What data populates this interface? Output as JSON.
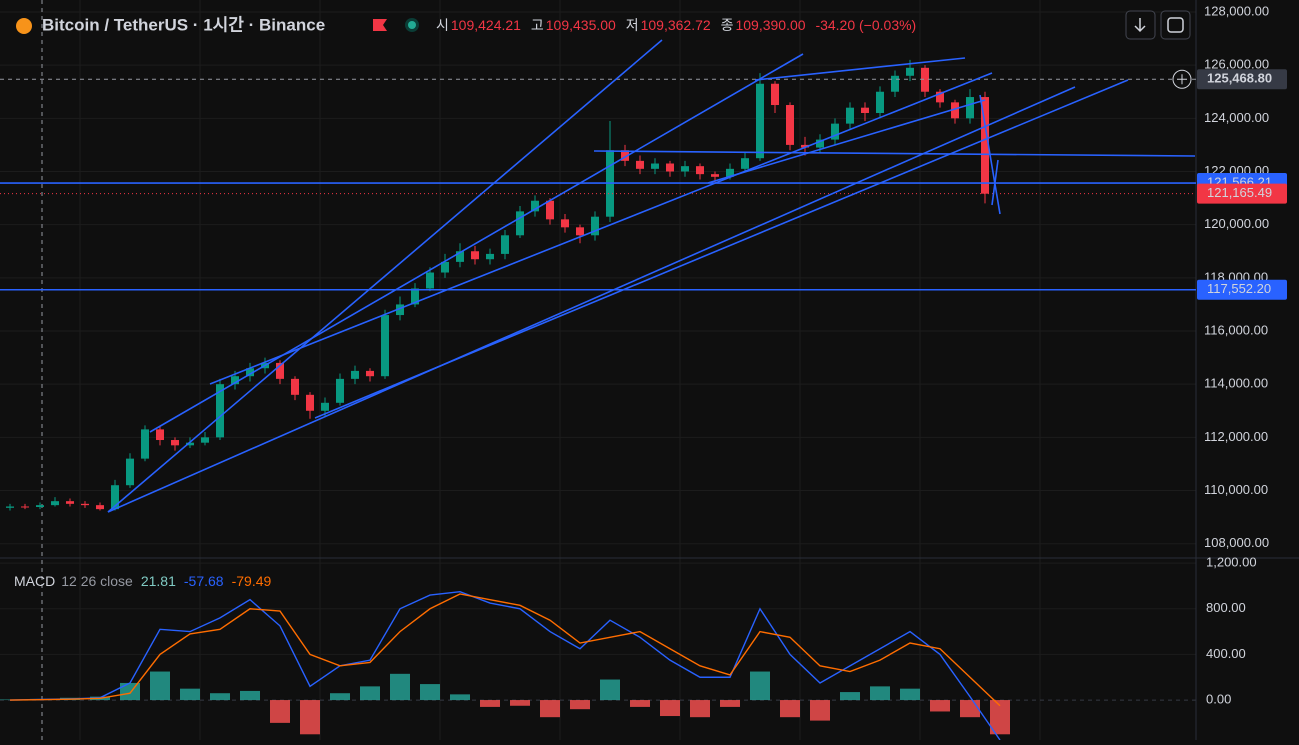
{
  "header": {
    "symbol": "Bitcoin / TetherUS · 1시간 · Binance",
    "ohlc": [
      {
        "key": "시",
        "value": "109,424.21"
      },
      {
        "key": "고",
        "value": "109,435.00"
      },
      {
        "key": "저",
        "value": "109,362.72"
      },
      {
        "key": "종",
        "value": "109,390.00"
      }
    ],
    "change": "-34.20 (−0.03%)"
  },
  "chart_data": [
    {
      "type": "candlestick",
      "up_color": "#089981",
      "down_color": "#f23645",
      "open": [
        109350,
        109400,
        109380,
        109450,
        109600,
        109500,
        109450,
        109300,
        110200,
        111200,
        112300,
        111900,
        111700,
        111800,
        112000,
        114000,
        114300,
        114600,
        114800,
        114200,
        113600,
        113000,
        113300,
        114200,
        114500,
        114300,
        116600,
        117000,
        117600,
        118200,
        118600,
        119000,
        118700,
        118900,
        119600,
        120500,
        120900,
        120200,
        119900,
        119600,
        120300,
        122800,
        122400,
        122100,
        122300,
        122000,
        122200,
        121900,
        121800,
        122100,
        122500,
        125300,
        124500,
        123000,
        122900,
        123200,
        123800,
        124400,
        124200,
        125000,
        125600,
        125900,
        125000,
        124600,
        124000,
        124800
      ],
      "high": [
        109500,
        109500,
        109550,
        109750,
        109700,
        109600,
        109550,
        110400,
        111400,
        112450,
        112400,
        112000,
        112000,
        112200,
        114200,
        114500,
        114800,
        115000,
        114900,
        114300,
        113700,
        113500,
        114400,
        114700,
        114600,
        116800,
        117300,
        117800,
        118400,
        118900,
        119300,
        119200,
        119100,
        119800,
        120700,
        121100,
        121000,
        120400,
        120000,
        120500,
        123900,
        123000,
        122600,
        122500,
        122400,
        122400,
        122300,
        122000,
        122300,
        122700,
        125700,
        125400,
        124600,
        123300,
        123400,
        124000,
        124600,
        124600,
        125200,
        125800,
        126200,
        126000,
        125100,
        124700,
        125100,
        125000
      ],
      "low": [
        109250,
        109300,
        109300,
        109400,
        109400,
        109350,
        109250,
        109250,
        110100,
        111100,
        111700,
        111500,
        111600,
        111700,
        111900,
        113800,
        114100,
        114400,
        114000,
        113400,
        112700,
        112800,
        113200,
        114000,
        114100,
        114200,
        116400,
        116900,
        117500,
        118000,
        118400,
        118500,
        118500,
        118700,
        119500,
        120300,
        120000,
        119700,
        119300,
        119400,
        120100,
        122200,
        121900,
        121900,
        121800,
        121800,
        121700,
        121600,
        121700,
        122000,
        122400,
        124200,
        122800,
        122600,
        122700,
        123000,
        123600,
        123900,
        124000,
        124800,
        125400,
        124800,
        124400,
        123800,
        123800,
        120800
      ],
      "close": [
        109400,
        109380,
        109450,
        109600,
        109500,
        109450,
        109300,
        110200,
        111200,
        112300,
        111900,
        111700,
        111800,
        112000,
        114000,
        114300,
        114600,
        114800,
        114200,
        113600,
        113000,
        113300,
        114200,
        114500,
        114300,
        116600,
        117000,
        117600,
        118200,
        118600,
        119000,
        118700,
        118900,
        119600,
        120500,
        120900,
        120200,
        119900,
        119600,
        120300,
        122800,
        122400,
        122100,
        122300,
        122000,
        122200,
        121900,
        121800,
        122100,
        122500,
        125300,
        124500,
        123000,
        122900,
        123200,
        123800,
        124400,
        124200,
        125000,
        125600,
        125900,
        125000,
        124600,
        124000,
        124800,
        121165
      ],
      "ylim": [
        107500,
        128450
      ],
      "yticks": [
        {
          "value": 108000,
          "label": "108,000.00"
        },
        {
          "value": 110000,
          "label": "110,000.00"
        },
        {
          "value": 112000,
          "label": "112,000.00"
        },
        {
          "value": 114000,
          "label": "114,000.00"
        },
        {
          "value": 116000,
          "label": "116,000.00"
        },
        {
          "value": 118000,
          "label": "118,000.00"
        },
        {
          "value": 120000,
          "label": "120,000.00"
        },
        {
          "value": 122000,
          "label": "122,000.00"
        },
        {
          "value": 124000,
          "label": "124,000.00"
        },
        {
          "value": 126000,
          "label": "126,000.00"
        },
        {
          "value": 128000,
          "label": "128,000.00"
        }
      ],
      "price_lines": [
        {
          "value": 121566.21,
          "label": "121,566.21",
          "color": "#2962ff"
        },
        {
          "value": 117552.2,
          "label": "117,552.20",
          "color": "#2962ff"
        },
        {
          "value": 121165.49,
          "label": "121,165.49",
          "color": "#f23645"
        },
        {
          "value": 125468.8,
          "label": "125,468.80",
          "color": "#363a45"
        }
      ]
    },
    {
      "type": "macd",
      "title": "MACD",
      "params": "12 26 close",
      "legend_values": [
        {
          "text": "21.81",
          "color": "#80cbc4"
        },
        {
          "text": "-57.68",
          "color": "#2962ff"
        },
        {
          "text": "-79.49",
          "color": "#ff6d00"
        }
      ],
      "histogram": {
        "pos_color": "#26a69a",
        "neg_color": "#ff5252",
        "values": [
          5,
          10,
          20,
          30,
          150,
          250,
          100,
          60,
          80,
          -200,
          -300,
          60,
          120,
          230,
          140,
          50,
          -60,
          -50,
          -150,
          -80,
          180,
          -60,
          -140,
          -150,
          -60,
          250,
          -150,
          -180,
          70,
          120,
          100,
          -100,
          -150,
          -300
        ]
      },
      "series": [
        {
          "color": "#2962ff",
          "values": [
            0,
            5,
            10,
            20,
            150,
            620,
            600,
            720,
            880,
            650,
            120,
            300,
            350,
            800,
            920,
            950,
            850,
            800,
            600,
            450,
            700,
            550,
            350,
            200,
            200,
            800,
            400,
            150,
            300,
            450,
            600,
            400,
            30,
            -350
          ]
        },
        {
          "color": "#ff6d00",
          "values": [
            0,
            3,
            8,
            15,
            60,
            400,
            580,
            620,
            800,
            780,
            400,
            300,
            330,
            600,
            800,
            930,
            880,
            830,
            700,
            500,
            550,
            600,
            450,
            300,
            220,
            600,
            550,
            300,
            250,
            350,
            500,
            450,
            200,
            -50
          ]
        }
      ],
      "ylim": [
        -350,
        1245
      ],
      "yticks": [
        {
          "value": 0,
          "label": "0.00"
        },
        {
          "value": 400,
          "label": "400.00"
        },
        {
          "value": 800,
          "label": "800.00"
        },
        {
          "value": 1200,
          "label": "1,200.00"
        }
      ]
    }
  ]
}
